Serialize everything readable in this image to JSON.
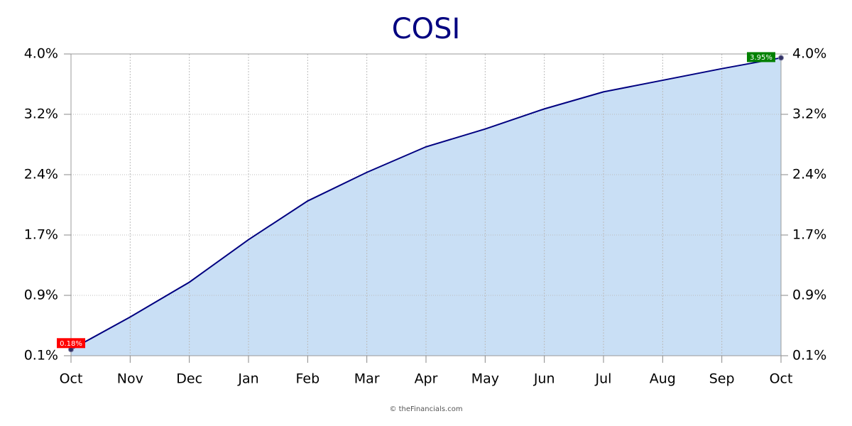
{
  "chart_data": {
    "type": "area",
    "title": "COSI",
    "credit": "© theFinancials.com",
    "categories": [
      "Oct",
      "Nov",
      "Dec",
      "Jan",
      "Feb",
      "Mar",
      "Apr",
      "May",
      "Jun",
      "Jul",
      "Aug",
      "Sep",
      "Oct"
    ],
    "series": [
      {
        "name": "COSI",
        "color": "#000080",
        "fill": "#c9dff5",
        "values": [
          0.18,
          0.6,
          1.05,
          1.6,
          2.1,
          2.47,
          2.8,
          3.03,
          3.29,
          3.51,
          3.66,
          3.81,
          3.95
        ],
        "value_labels": [
          "0.18%",
          null,
          null,
          null,
          null,
          null,
          null,
          null,
          null,
          null,
          null,
          null,
          "3.95%"
        ],
        "value_label_colors": [
          "#ff0000",
          null,
          null,
          null,
          null,
          null,
          null,
          null,
          null,
          null,
          null,
          null,
          "#008000"
        ]
      }
    ],
    "ylim": [
      0.1,
      4.0
    ],
    "yticks": [
      {
        "value": 0.1,
        "label": "0.1%"
      },
      {
        "value": 0.88,
        "label": "0.9%"
      },
      {
        "value": 1.66,
        "label": "1.7%"
      },
      {
        "value": 2.44,
        "label": "2.4%"
      },
      {
        "value": 3.22,
        "label": "3.2%"
      },
      {
        "value": 4.0,
        "label": "4.0%"
      }
    ],
    "y2lim": [
      0.1,
      4.0
    ],
    "y2ticks": [
      {
        "value": 0.1,
        "label": "0.1%"
      },
      {
        "value": 0.88,
        "label": "0.9%"
      },
      {
        "value": 1.66,
        "label": "1.7%"
      },
      {
        "value": 2.44,
        "label": "2.4%"
      },
      {
        "value": 3.22,
        "label": "3.2%"
      },
      {
        "value": 4.0,
        "label": "4.0%"
      }
    ],
    "grid": true
  }
}
